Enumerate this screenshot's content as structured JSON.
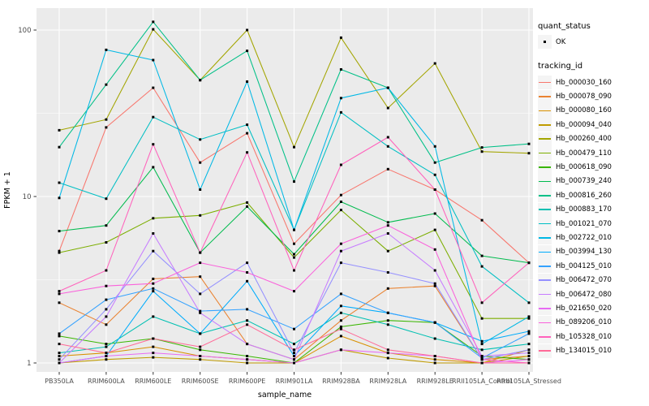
{
  "chart_data": {
    "type": "line",
    "title": "",
    "xlabel": "sample_name",
    "ylabel": "FPKM + 1",
    "y_scale": "log10",
    "y_ticks": [
      100,
      10,
      1
    ],
    "y_minor_ticks": [
      31.62,
      3.162
    ],
    "ylim": [
      0.9,
      130
    ],
    "grid": {
      "panel_bg": "#EBEBEB",
      "gridline_color": "#FFFFFF",
      "show_major": true,
      "show_minor": true
    },
    "legend_position": "right",
    "point_color": "#000000",
    "axis_text_color": "#4D4D4D",
    "axis_title_color": "#000000",
    "categories": [
      "PB350LA",
      "RRIM600LA",
      "RRIM600LE",
      "RRIM600SE",
      "RRIM600PE",
      "RRIM901LA",
      "RRIM928BA",
      "RRIM928LA",
      "RRIM928LE",
      "RRII105LA_Control",
      "RRII105LA_Stressed"
    ],
    "legends": [
      {
        "title": "quant_status",
        "type": "point",
        "entries": [
          {
            "label": "OK",
            "color": "#000000"
          }
        ]
      },
      {
        "title": "tracking_id",
        "type": "line",
        "entries": [
          {
            "label": "Hb_000030_160",
            "color": "#F8766D"
          },
          {
            "label": "Hb_000078_090",
            "color": "#EA8331"
          },
          {
            "label": "Hb_000080_160",
            "color": "#D89000"
          },
          {
            "label": "Hb_000094_040",
            "color": "#C09B00"
          },
          {
            "label": "Hb_000260_400",
            "color": "#A3A500"
          },
          {
            "label": "Hb_000479_110",
            "color": "#7CAE00"
          },
          {
            "label": "Hb_000618_090",
            "color": "#39B600"
          },
          {
            "label": "Hb_000739_240",
            "color": "#00BB4E"
          },
          {
            "label": "Hb_000816_260",
            "color": "#00C087"
          },
          {
            "label": "Hb_000883_170",
            "color": "#00C0B2"
          },
          {
            "label": "Hb_001021_070",
            "color": "#00BFC4"
          },
          {
            "label": "Hb_002722_010",
            "color": "#00B8E5"
          },
          {
            "label": "Hb_003994_130",
            "color": "#00ACFC"
          },
          {
            "label": "Hb_004125_010",
            "color": "#35A2FF"
          },
          {
            "label": "Hb_006472_070",
            "color": "#9590FF"
          },
          {
            "label": "Hb_006472_080",
            "color": "#C77CFF"
          },
          {
            "label": "Hb_021650_020",
            "color": "#E76BF3"
          },
          {
            "label": "Hb_089206_010",
            "color": "#FA62DB"
          },
          {
            "label": "Hb_105328_010",
            "color": "#FF62BC"
          },
          {
            "label": "Hb_134015_010",
            "color": "#FF6A98"
          }
        ]
      }
    ],
    "series": [
      {
        "name": "Hb_000030_160",
        "color": "#F8766D",
        "values": [
          4.7,
          26,
          45,
          16,
          24,
          5.2,
          10.2,
          14.6,
          11,
          7.2,
          4.0
        ]
      },
      {
        "name": "Hb_000078_090",
        "color": "#EA8331",
        "values": [
          2.3,
          1.7,
          3.2,
          3.3,
          1.3,
          1.05,
          1.8,
          2.8,
          2.9,
          1.05,
          1.1
        ]
      },
      {
        "name": "Hb_000080_160",
        "color": "#D89000",
        "values": [
          1.1,
          1.15,
          1.25,
          1.1,
          1.05,
          1.0,
          1.45,
          1.15,
          1.05,
          1.0,
          1.2
        ]
      },
      {
        "name": "Hb_000094_040",
        "color": "#C09B00",
        "values": [
          1.0,
          1.05,
          1.08,
          1.05,
          1.0,
          1.0,
          1.2,
          1.07,
          1.0,
          1.0,
          1.1
        ]
      },
      {
        "name": "Hb_000260_400",
        "color": "#A3A500",
        "values": [
          25,
          29,
          101,
          50,
          100,
          19.8,
          90,
          34,
          63,
          18.6,
          18.2
        ]
      },
      {
        "name": "Hb_000479_110",
        "color": "#7CAE00",
        "values": [
          4.6,
          5.3,
          7.4,
          7.7,
          9.2,
          4.3,
          8.3,
          4.7,
          6.3,
          1.85,
          1.85
        ]
      },
      {
        "name": "Hb_000618_090",
        "color": "#39B600",
        "values": [
          1.45,
          1.3,
          1.4,
          1.2,
          1.1,
          1.0,
          1.65,
          1.8,
          1.75,
          1.1,
          1.05
        ]
      },
      {
        "name": "Hb_000739_240",
        "color": "#00BB4E",
        "values": [
          6.2,
          6.7,
          15,
          4.6,
          8.7,
          4.5,
          9.3,
          7.0,
          7.9,
          4.4,
          4.0
        ]
      },
      {
        "name": "Hb_000816_260",
        "color": "#00C087",
        "values": [
          19.8,
          47,
          112,
          50,
          75,
          12.3,
          58,
          45,
          16,
          19.7,
          20.7
        ]
      },
      {
        "name": "Hb_000883_170",
        "color": "#00C0B2",
        "values": [
          1.15,
          1.25,
          1.9,
          1.5,
          1.8,
          1.3,
          2.0,
          1.7,
          1.4,
          1.2,
          1.3
        ]
      },
      {
        "name": "Hb_001021_070",
        "color": "#00BFC4",
        "values": [
          12.1,
          9.7,
          30,
          22,
          27,
          6.3,
          32,
          20,
          13.5,
          3.8,
          2.3
        ]
      },
      {
        "name": "Hb_002722_010",
        "color": "#00B8E5",
        "values": [
          9.8,
          76,
          66,
          11,
          49,
          6.3,
          39,
          45,
          20,
          1.3,
          1.9
        ]
      },
      {
        "name": "Hb_003994_130",
        "color": "#00ACFC",
        "values": [
          1.0,
          1.1,
          2.7,
          1.5,
          3.1,
          1.1,
          2.2,
          2.0,
          1.75,
          1.35,
          1.55
        ]
      },
      {
        "name": "Hb_004125_010",
        "color": "#35A2FF",
        "values": [
          1.5,
          2.4,
          2.8,
          2.05,
          2.1,
          1.6,
          2.6,
          2.0,
          1.75,
          1.07,
          1.5
        ]
      },
      {
        "name": "Hb_006472_070",
        "color": "#9590FF",
        "values": [
          1.05,
          2.1,
          4.7,
          2.6,
          4.0,
          1.15,
          4.0,
          3.5,
          3.0,
          1.05,
          1.2
        ]
      },
      {
        "name": "Hb_006472_080",
        "color": "#C77CFF",
        "values": [
          1.0,
          1.9,
          6.0,
          2.0,
          1.3,
          1.05,
          4.7,
          6.0,
          3.6,
          1.1,
          1.15
        ]
      },
      {
        "name": "Hb_021650_020",
        "color": "#E76BF3",
        "values": [
          1.0,
          1.1,
          1.15,
          1.1,
          1.05,
          1.0,
          1.2,
          1.15,
          1.1,
          1.0,
          1.05
        ]
      },
      {
        "name": "Hb_089206_010",
        "color": "#FA62DB",
        "values": [
          2.6,
          2.9,
          3.0,
          4.0,
          3.5,
          2.7,
          5.2,
          6.7,
          4.8,
          1.05,
          1.0
        ]
      },
      {
        "name": "Hb_105328_010",
        "color": "#FF62BC",
        "values": [
          2.7,
          3.6,
          20.6,
          4.6,
          18.4,
          3.6,
          15.5,
          22.7,
          11,
          2.3,
          4.0
        ]
      },
      {
        "name": "Hb_134015_010",
        "color": "#FF6A98",
        "values": [
          1.3,
          1.15,
          1.4,
          1.25,
          1.7,
          1.2,
          1.6,
          1.2,
          1.1,
          1.0,
          1.0
        ]
      }
    ]
  }
}
